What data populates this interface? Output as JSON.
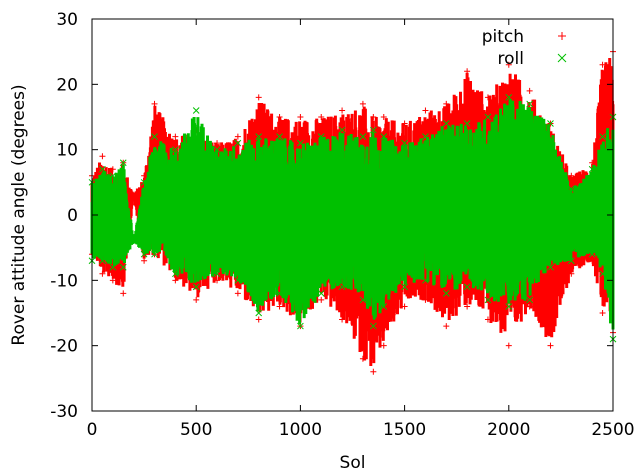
{
  "chart_data": {
    "type": "scatter",
    "title": "",
    "xlabel": "Sol",
    "ylabel": "Rover attitude angle (degrees)",
    "xlim": [
      0,
      2500
    ],
    "ylim": [
      -30,
      30
    ],
    "xticks": [
      0,
      500,
      1000,
      1500,
      2000,
      2500
    ],
    "yticks": [
      -30,
      -20,
      -10,
      0,
      10,
      20,
      30
    ],
    "legend_position": "top-right",
    "grid": false,
    "series": [
      {
        "name": "pitch",
        "marker": "+",
        "color": "#ff0000",
        "envelope": [
          {
            "x": 0,
            "min": -6,
            "max": 6
          },
          {
            "x": 50,
            "min": -9,
            "max": 9
          },
          {
            "x": 100,
            "min": -10,
            "max": 7
          },
          {
            "x": 150,
            "min": -12,
            "max": 8
          },
          {
            "x": 200,
            "min": 3,
            "max": 3
          },
          {
            "x": 250,
            "min": -7,
            "max": 6
          },
          {
            "x": 300,
            "min": -6,
            "max": 17
          },
          {
            "x": 400,
            "min": -10,
            "max": 12
          },
          {
            "x": 500,
            "min": -13,
            "max": 13
          },
          {
            "x": 600,
            "min": -10,
            "max": 11
          },
          {
            "x": 700,
            "min": -12,
            "max": 12
          },
          {
            "x": 800,
            "min": -16,
            "max": 18
          },
          {
            "x": 900,
            "min": -14,
            "max": 15
          },
          {
            "x": 1000,
            "min": -17,
            "max": 15
          },
          {
            "x": 1100,
            "min": -13,
            "max": 15
          },
          {
            "x": 1200,
            "min": -16,
            "max": 16
          },
          {
            "x": 1300,
            "min": -22,
            "max": 17
          },
          {
            "x": 1350,
            "min": -24,
            "max": 15
          },
          {
            "x": 1400,
            "min": -20,
            "max": 15
          },
          {
            "x": 1500,
            "min": -14,
            "max": 14
          },
          {
            "x": 1600,
            "min": -13,
            "max": 16
          },
          {
            "x": 1700,
            "min": -17,
            "max": 17
          },
          {
            "x": 1800,
            "min": -14,
            "max": 22
          },
          {
            "x": 1900,
            "min": -16,
            "max": 18
          },
          {
            "x": 2000,
            "min": -20,
            "max": 23
          },
          {
            "x": 2100,
            "min": -14,
            "max": 19
          },
          {
            "x": 2200,
            "min": -20,
            "max": 14
          },
          {
            "x": 2300,
            "min": -9,
            "max": 6
          },
          {
            "x": 2400,
            "min": -7,
            "max": 8
          },
          {
            "x": 2450,
            "min": -15,
            "max": 23
          },
          {
            "x": 2500,
            "min": -18,
            "max": 25
          }
        ]
      },
      {
        "name": "roll",
        "marker": "x",
        "color": "#00c000",
        "envelope": [
          {
            "x": 0,
            "min": -7,
            "max": 5
          },
          {
            "x": 50,
            "min": -7,
            "max": 7
          },
          {
            "x": 100,
            "min": -8,
            "max": 6
          },
          {
            "x": 150,
            "min": -8,
            "max": 8
          },
          {
            "x": 200,
            "min": -4,
            "max": -4
          },
          {
            "x": 250,
            "min": -6,
            "max": 5
          },
          {
            "x": 300,
            "min": -6,
            "max": 12
          },
          {
            "x": 400,
            "min": -9,
            "max": 10
          },
          {
            "x": 500,
            "min": -11,
            "max": 16
          },
          {
            "x": 600,
            "min": -9,
            "max": 10
          },
          {
            "x": 700,
            "min": -10,
            "max": 11
          },
          {
            "x": 800,
            "min": -15,
            "max": 12
          },
          {
            "x": 900,
            "min": -12,
            "max": 12
          },
          {
            "x": 1000,
            "min": -17,
            "max": 11
          },
          {
            "x": 1100,
            "min": -12,
            "max": 12
          },
          {
            "x": 1200,
            "min": -11,
            "max": 13
          },
          {
            "x": 1300,
            "min": -13,
            "max": 12
          },
          {
            "x": 1350,
            "min": -17,
            "max": 13
          },
          {
            "x": 1400,
            "min": -14,
            "max": 12
          },
          {
            "x": 1500,
            "min": -11,
            "max": 11
          },
          {
            "x": 1600,
            "min": -10,
            "max": 12
          },
          {
            "x": 1700,
            "min": -12,
            "max": 14
          },
          {
            "x": 1800,
            "min": -11,
            "max": 14
          },
          {
            "x": 1900,
            "min": -13,
            "max": 15
          },
          {
            "x": 2000,
            "min": -14,
            "max": 18
          },
          {
            "x": 2100,
            "min": -13,
            "max": 17
          },
          {
            "x": 2200,
            "min": -8,
            "max": 14
          },
          {
            "x": 2300,
            "min": -7,
            "max": 4
          },
          {
            "x": 2400,
            "min": -6,
            "max": 7
          },
          {
            "x": 2450,
            "min": -9,
            "max": 12
          },
          {
            "x": 2500,
            "min": -19,
            "max": 15
          }
        ]
      }
    ]
  }
}
